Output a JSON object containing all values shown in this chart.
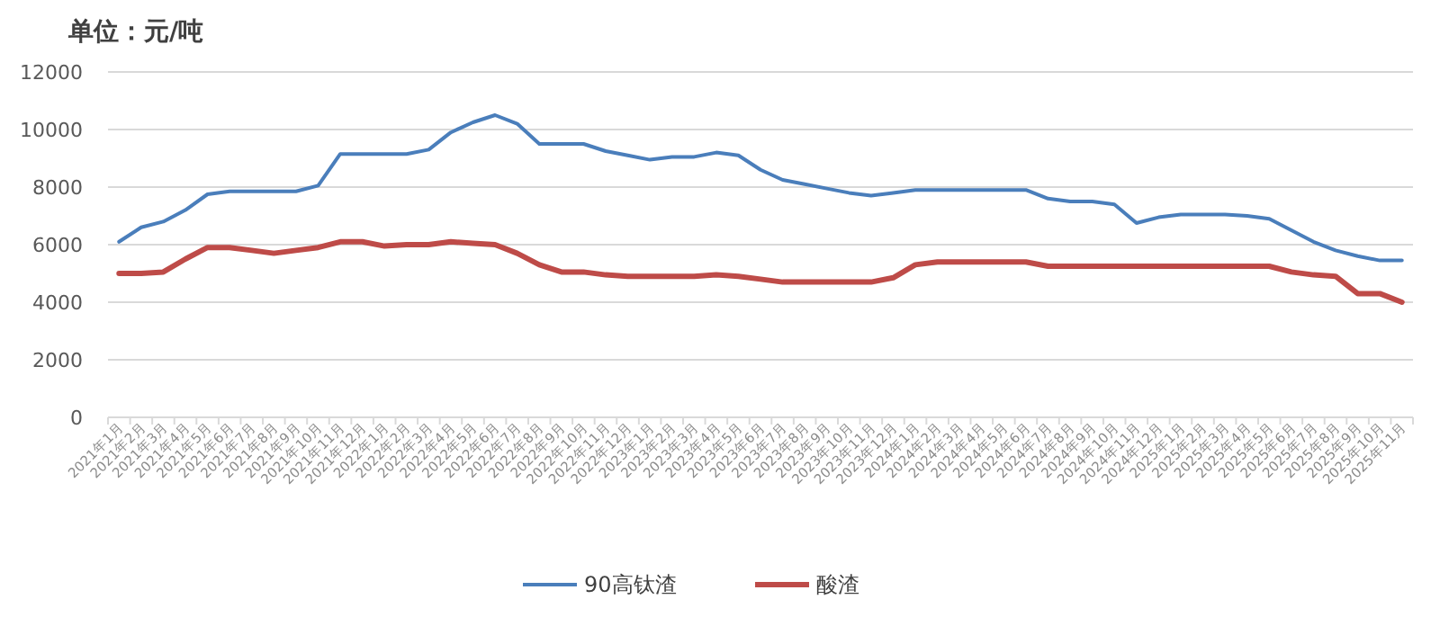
{
  "chart_data": {
    "type": "line",
    "title": "单位：元/吨",
    "categories": [
      "2021年1月",
      "2021年2月",
      "2021年3月",
      "2021年4月",
      "2021年5月",
      "2021年6月",
      "2021年7月",
      "2021年8月",
      "2021年9月",
      "2021年10月",
      "2021年11月",
      "2021年12月",
      "2022年1月",
      "2022年2月",
      "2022年3月",
      "2022年4月",
      "2022年5月",
      "2022年6月",
      "2022年7月",
      "2022年8月",
      "2022年9月",
      "2022年10月",
      "2022年11月",
      "2022年12月",
      "2023年1月",
      "2023年2月",
      "2023年3月",
      "2023年4月",
      "2023年5月",
      "2023年6月",
      "2023年7月",
      "2023年8月",
      "2023年9月",
      "2023年10月",
      "2023年11月",
      "2023年12月",
      "2024年1月",
      "2024年2月",
      "2024年3月",
      "2024年4月",
      "2024年5月",
      "2024年6月",
      "2024年7月",
      "2024年8月",
      "2024年9月",
      "2024年10月",
      "2024年11月",
      "2024年12月",
      "2025年1月",
      "2025年2月",
      "2025年3月",
      "2025年4月",
      "2025年5月",
      "2025年6月",
      "2025年7月",
      "2025年8月",
      "2025年9月",
      "2025年10月",
      "2025年11月"
    ],
    "series": [
      {
        "name": "90高钛渣",
        "color": "#4a7ebb",
        "values": [
          6100,
          6600,
          6800,
          7200,
          7750,
          7850,
          7850,
          7850,
          7850,
          8050,
          9150,
          9150,
          9150,
          9150,
          9300,
          9900,
          10250,
          10500,
          10200,
          9500,
          9500,
          9500,
          9250,
          9100,
          8950,
          9050,
          9050,
          9200,
          9100,
          8600,
          8250,
          8100,
          7950,
          7800,
          7700,
          7800,
          7900,
          7900,
          7900,
          7900,
          7900,
          7900,
          7600,
          7500,
          7500,
          7400,
          6750,
          6950,
          7050,
          7050,
          7050,
          7000,
          6900,
          6500,
          6100,
          5800,
          5600,
          5450,
          5450
        ]
      },
      {
        "name": "酸渣",
        "color": "#be4b48",
        "values": [
          5000,
          5000,
          5050,
          5500,
          5900,
          5900,
          5800,
          5700,
          5800,
          5900,
          6100,
          6100,
          5950,
          6000,
          6000,
          6100,
          6050,
          6000,
          5700,
          5300,
          5050,
          5050,
          4950,
          4900,
          4900,
          4900,
          4900,
          4950,
          4900,
          4800,
          4700,
          4700,
          4700,
          4700,
          4700,
          4850,
          5300,
          5400,
          5400,
          5400,
          5400,
          5400,
          5250,
          5250,
          5250,
          5250,
          5250,
          5250,
          5250,
          5250,
          5250,
          5250,
          5250,
          5050,
          4950,
          4900,
          4300,
          4300,
          4000
        ]
      }
    ],
    "ylim": [
      0,
      12000
    ],
    "yticks": [
      0,
      2000,
      4000,
      6000,
      8000,
      10000,
      12000
    ],
    "grid": "y",
    "legend": "bottom",
    "line_style": "solid"
  }
}
